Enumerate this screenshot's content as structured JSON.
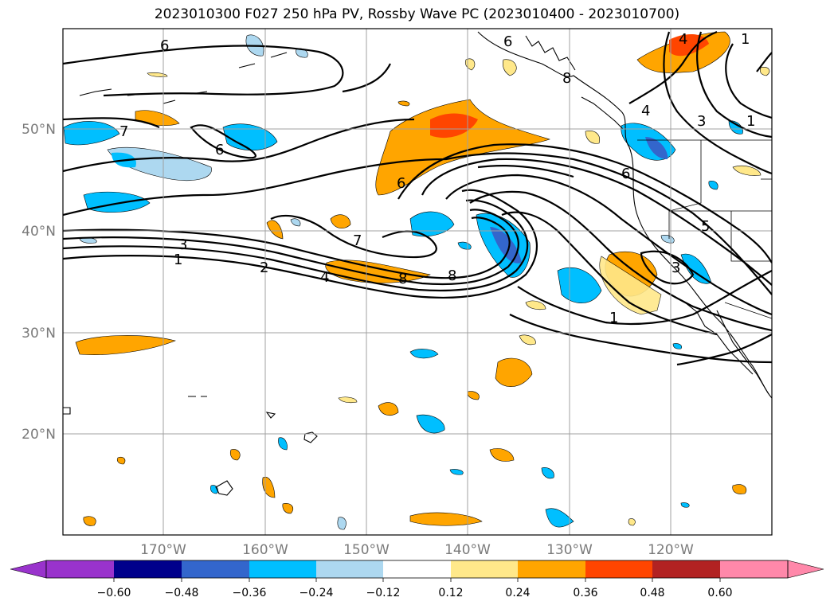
{
  "title": "2023010300 F027 250 hPa PV, Rossby Wave PC (2023010400 - 2023010700)",
  "map": {
    "lat_labels": [
      "50°N",
      "40°N",
      "30°N",
      "20°N"
    ],
    "lon_labels": [
      "170°W",
      "160°W",
      "150°W",
      "140°W",
      "130°W",
      "120°W"
    ],
    "contour_labels": [
      "6",
      "7",
      "6",
      "3",
      "1",
      "2",
      "4",
      "6",
      "7",
      "8",
      "8",
      "6",
      "1",
      "5",
      "3",
      "1",
      "4",
      "3",
      "1",
      "4",
      "8",
      "6"
    ]
  },
  "colorbar": {
    "ticks": [
      "−0.60",
      "−0.48",
      "−0.36",
      "−0.24",
      "−0.12",
      "0.12",
      "0.24",
      "0.36",
      "0.48",
      "0.60"
    ],
    "colors": [
      "#9933cc",
      "#00008b",
      "#3366cc",
      "#00bfff",
      "#add8f0",
      "#ffffff",
      "#ffe88a",
      "#ffa500",
      "#ff4500",
      "#b22222",
      "#ff88aa"
    ]
  }
}
